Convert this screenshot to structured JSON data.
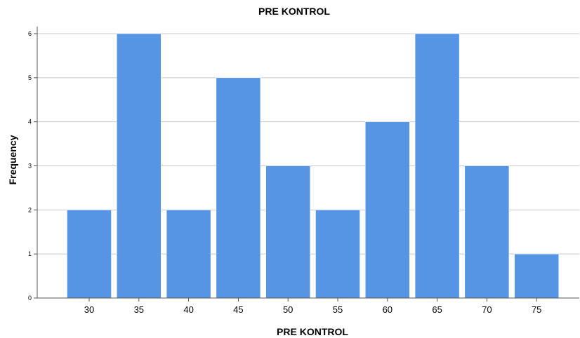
{
  "chart_data": {
    "type": "bar",
    "title": "PRE KONTROL",
    "xlabel": "PRE KONTROL",
    "ylabel": "Frequency",
    "categories": [
      "30",
      "35",
      "40",
      "45",
      "50",
      "55",
      "60",
      "65",
      "70",
      "75"
    ],
    "values": [
      2,
      6,
      2,
      5,
      3,
      2,
      4,
      6,
      3,
      1
    ],
    "ylim": [
      0,
      6
    ],
    "yticks": [
      "0",
      "1",
      "2",
      "3",
      "4",
      "5",
      "6"
    ],
    "grid": true,
    "colors": {
      "bar": "#5595e3",
      "grid": "#c8c8c8",
      "axis": "#555555",
      "background": "#ffffff"
    }
  }
}
